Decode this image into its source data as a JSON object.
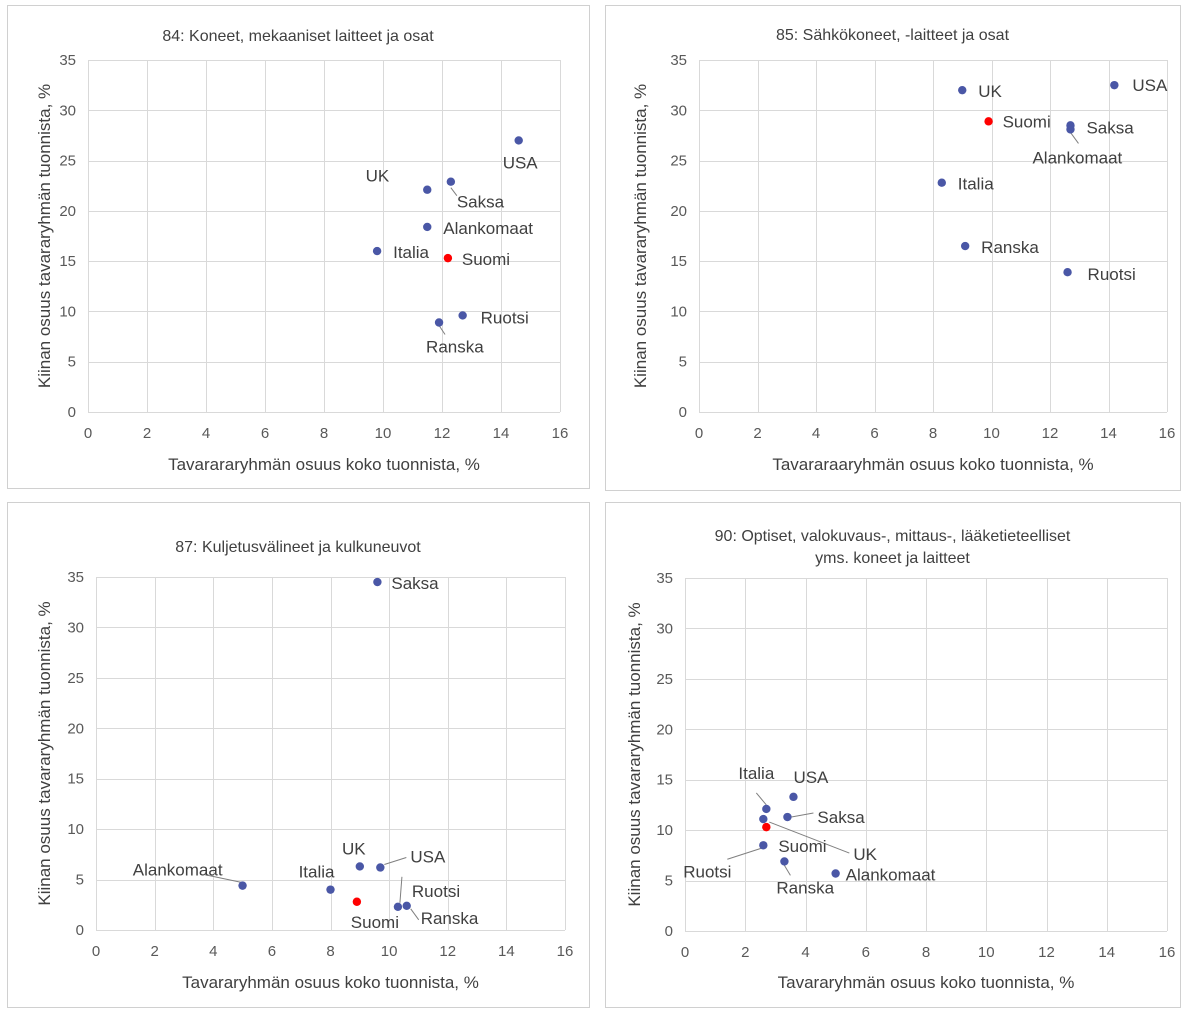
{
  "colors": {
    "country": "#4a57a6",
    "finland": "#ff0000",
    "grid": "#d9d9d9",
    "text": "#404040"
  },
  "chart_data": [
    {
      "type": "scatter",
      "title": [
        "84: Koneet, mekaaniset laitteet ja osat"
      ],
      "xlabel": "Tavarararyhmän  osuus koko tuonnista, %",
      "ylabel": "Kiinan osuus tavararyhmän  tuonnista, %",
      "xlim": [
        0,
        16
      ],
      "ylim": [
        0,
        35
      ],
      "xticks": [
        0,
        2,
        4,
        6,
        8,
        10,
        12,
        14,
        16
      ],
      "yticks": [
        0,
        5,
        10,
        15,
        20,
        25,
        30,
        35
      ],
      "grid": true,
      "points": [
        {
          "label": "USA",
          "x": 14.6,
          "y": 27.0
        },
        {
          "label": "UK",
          "x": 11.5,
          "y": 22.1
        },
        {
          "label": "Saksa",
          "x": 12.3,
          "y": 22.9
        },
        {
          "label": "Alankomaat",
          "x": 11.5,
          "y": 18.4
        },
        {
          "label": "Italia",
          "x": 9.8,
          "y": 16.0
        },
        {
          "label": "Suomi",
          "x": 12.2,
          "y": 15.3,
          "highlight": true
        },
        {
          "label": "Ruotsi",
          "x": 12.7,
          "y": 9.6
        },
        {
          "label": "Ranska",
          "x": 11.9,
          "y": 8.9
        }
      ]
    },
    {
      "type": "scatter",
      "title": [
        "85: Sähkökoneet, -laitteet ja osat"
      ],
      "xlabel": "Tavararaaryhmän  osuus koko tuonnista, %",
      "ylabel": "Kiinan osuus tavararyhmän  tuonnista, %",
      "xlim": [
        0,
        16
      ],
      "ylim": [
        0,
        35
      ],
      "xticks": [
        0,
        2,
        4,
        6,
        8,
        10,
        12,
        14,
        16
      ],
      "yticks": [
        0,
        5,
        10,
        15,
        20,
        25,
        30,
        35
      ],
      "grid": true,
      "points": [
        {
          "label": "UK",
          "x": 9.0,
          "y": 32.0
        },
        {
          "label": "USA",
          "x": 14.2,
          "y": 32.5
        },
        {
          "label": "Suomi",
          "x": 9.9,
          "y": 28.9,
          "highlight": true
        },
        {
          "label": "Saksa",
          "x": 12.7,
          "y": 28.5
        },
        {
          "label": "Alankomaat",
          "x": 12.7,
          "y": 28.1
        },
        {
          "label": "Italia",
          "x": 8.3,
          "y": 22.8
        },
        {
          "label": "Ranska",
          "x": 9.1,
          "y": 16.5
        },
        {
          "label": "Ruotsi",
          "x": 12.6,
          "y": 13.9
        }
      ]
    },
    {
      "type": "scatter",
      "title": [
        "87: Kuljetusvälineet  ja kulkuneuvot"
      ],
      "xlabel": "Tavararyhmän  osuus koko tuonnista, %",
      "ylabel": "Kiinan osuus tavararyhmän  tuonnista, %",
      "xlim": [
        0,
        16
      ],
      "ylim": [
        0,
        35
      ],
      "xticks": [
        0,
        2,
        4,
        6,
        8,
        10,
        12,
        14,
        16
      ],
      "yticks": [
        0,
        5,
        10,
        15,
        20,
        25,
        30,
        35
      ],
      "grid": true,
      "points": [
        {
          "label": "Saksa",
          "x": 9.6,
          "y": 34.5
        },
        {
          "label": "Alankomaat",
          "x": 5.0,
          "y": 4.4
        },
        {
          "label": "UK",
          "x": 9.0,
          "y": 6.3
        },
        {
          "label": "USA",
          "x": 9.7,
          "y": 6.2
        },
        {
          "label": "Italia",
          "x": 8.0,
          "y": 4.0
        },
        {
          "label": "Suomi",
          "x": 8.9,
          "y": 2.8,
          "highlight": true
        },
        {
          "label": "Ruotsi",
          "x": 10.3,
          "y": 2.3
        },
        {
          "label": "Ranska",
          "x": 10.6,
          "y": 2.4
        }
      ]
    },
    {
      "type": "scatter",
      "title": [
        "90: Optiset, valokuvaus-,  mittaus-, lääketieteelliset",
        "yms. koneet ja laitteet"
      ],
      "xlabel": "Tavararyhmän  osuus koko tuonnista, %",
      "ylabel": "Kiinan osuus tavararyhmän  tuonnista, %",
      "xlim": [
        0,
        16
      ],
      "ylim": [
        0,
        35
      ],
      "xticks": [
        0,
        2,
        4,
        6,
        8,
        10,
        12,
        14,
        16
      ],
      "yticks": [
        0,
        5,
        10,
        15,
        20,
        25,
        30,
        35
      ],
      "grid": true,
      "points": [
        {
          "label": "USA",
          "x": 3.6,
          "y": 13.3
        },
        {
          "label": "Italia",
          "x": 2.7,
          "y": 12.1
        },
        {
          "label": "Saksa",
          "x": 3.4,
          "y": 11.3
        },
        {
          "label": "UK",
          "x": 2.6,
          "y": 11.1
        },
        {
          "label": "Suomi",
          "x": 2.7,
          "y": 10.3,
          "highlight": true
        },
        {
          "label": "Ruotsi",
          "x": 2.6,
          "y": 8.5
        },
        {
          "label": "Ranska",
          "x": 3.3,
          "y": 6.9
        },
        {
          "label": "Alankomaat",
          "x": 5.0,
          "y": 5.7
        }
      ]
    }
  ]
}
